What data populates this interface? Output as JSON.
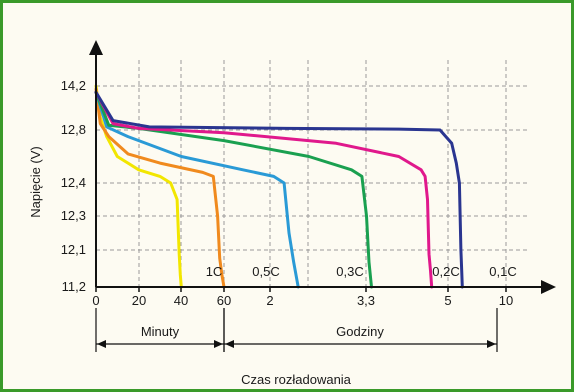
{
  "chart_data": {
    "type": "line",
    "title": "",
    "xlabel": "Czas rozładowania",
    "ylabel": "Napięcie (V)",
    "y_tick_labels": [
      "11,2",
      "12,1",
      "12,3",
      "12,4",
      "12,8",
      "14,2"
    ],
    "y_tick_values": [
      11.2,
      12.1,
      12.3,
      12.4,
      12.8,
      14.2
    ],
    "x_tick_labels": [
      "0",
      "20",
      "40",
      "60",
      "2",
      "3,3",
      "5",
      "10"
    ],
    "x_segments": [
      {
        "label": "Minuty",
        "range": [
          "0",
          "60"
        ]
      },
      {
        "label": "Godziny",
        "range": [
          "60",
          "10"
        ]
      }
    ],
    "grid": true,
    "series": [
      {
        "name": "1C",
        "color": "#f2e600",
        "points": [
          [
            0,
            14.2
          ],
          [
            2,
            13.2
          ],
          [
            5,
            12.75
          ],
          [
            10,
            12.6
          ],
          [
            20,
            12.5
          ],
          [
            30,
            12.45
          ],
          [
            35,
            12.4
          ],
          [
            38,
            12.35
          ],
          [
            39,
            12.0
          ],
          [
            39.5,
            11.5
          ],
          [
            40,
            11.2
          ]
        ]
      },
      {
        "name": "1C",
        "color": "#f08a1e",
        "points": [
          [
            0,
            14.1
          ],
          [
            2,
            13.0
          ],
          [
            6,
            12.75
          ],
          [
            15,
            12.62
          ],
          [
            30,
            12.55
          ],
          [
            50,
            12.48
          ],
          [
            55,
            12.45
          ],
          [
            57,
            12.3
          ],
          [
            58,
            11.9
          ],
          [
            59,
            11.5
          ],
          [
            60,
            11.2
          ]
        ]
      },
      {
        "name": "0,5C",
        "color": "#2a9ad6",
        "points": [
          [
            0,
            14.0
          ],
          [
            5,
            12.9
          ],
          [
            15,
            12.75
          ],
          [
            40,
            12.6
          ],
          [
            70,
            12.5
          ],
          [
            90,
            12.45
          ],
          [
            98,
            12.4
          ],
          [
            102,
            12.2
          ],
          [
            106,
            11.8
          ],
          [
            110,
            11.2
          ]
        ]
      },
      {
        "name": "0,3C",
        "color": "#1aa050",
        "points": [
          [
            0,
            14.0
          ],
          [
            6,
            12.95
          ],
          [
            20,
            12.85
          ],
          [
            60,
            12.72
          ],
          [
            120,
            12.6
          ],
          [
            170,
            12.5
          ],
          [
            185,
            12.45
          ],
          [
            192,
            12.3
          ],
          [
            196,
            11.8
          ],
          [
            200,
            11.2
          ]
        ]
      },
      {
        "name": "0,2C",
        "color": "#e0188c",
        "points": [
          [
            0,
            14.0
          ],
          [
            8,
            13.0
          ],
          [
            20,
            12.85
          ],
          [
            60,
            12.78
          ],
          [
            150,
            12.7
          ],
          [
            250,
            12.6
          ],
          [
            300,
            12.5
          ],
          [
            310,
            12.45
          ],
          [
            316,
            12.35
          ],
          [
            320,
            12.0
          ],
          [
            324,
            11.6
          ],
          [
            327,
            11.2
          ]
        ]
      },
      {
        "name": "0,1C",
        "color": "#2a3590",
        "points": [
          [
            0,
            14.0
          ],
          [
            8,
            13.1
          ],
          [
            25,
            12.9
          ],
          [
            100,
            12.85
          ],
          [
            250,
            12.83
          ],
          [
            350,
            12.8
          ],
          [
            385,
            12.7
          ],
          [
            400,
            12.55
          ],
          [
            410,
            12.4
          ],
          [
            415,
            12.1
          ],
          [
            418,
            11.6
          ],
          [
            420,
            11.2
          ]
        ]
      }
    ],
    "annotations": [
      "1C",
      "0,5C",
      "0,3C",
      "0,2C",
      "0,1C"
    ]
  }
}
